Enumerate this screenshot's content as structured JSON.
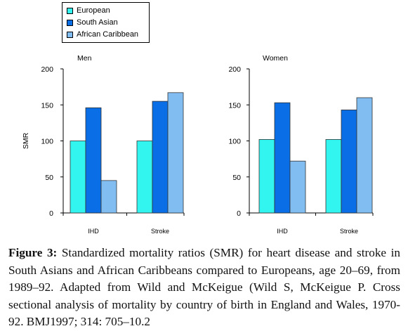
{
  "legend": {
    "items": [
      {
        "label": "European",
        "color": "#33f5f0"
      },
      {
        "label": "South Asian",
        "color": "#0a6ee6"
      },
      {
        "label": "African Caribbean",
        "color": "#82bdf2"
      }
    ]
  },
  "chart_data": [
    {
      "type": "bar",
      "title": "Men",
      "ylabel": "SMR",
      "xlabel": "",
      "ylim": [
        0,
        200
      ],
      "yticks": [
        "0",
        "50",
        "100",
        "150",
        "200"
      ],
      "categories": [
        "IHD",
        "Stroke"
      ],
      "series": [
        {
          "name": "European",
          "values": [
            100,
            100
          ]
        },
        {
          "name": "South Asian",
          "values": [
            146,
            155
          ]
        },
        {
          "name": "African Caribbean",
          "values": [
            45,
            167
          ]
        }
      ]
    },
    {
      "type": "bar",
      "title": "Women",
      "ylabel": "",
      "xlabel": "",
      "ylim": [
        0,
        200
      ],
      "yticks": [
        "0",
        "50",
        "100",
        "150",
        "200"
      ],
      "categories": [
        "IHD",
        "Stroke"
      ],
      "series": [
        {
          "name": "European",
          "values": [
            102,
            102
          ]
        },
        {
          "name": "South Asian",
          "values": [
            153,
            143
          ]
        },
        {
          "name": "African Caribbean",
          "values": [
            72,
            160
          ]
        }
      ]
    }
  ],
  "caption": {
    "label": "Figure 3:",
    "text": " Standardized mortality ratios (SMR) for heart disease and stroke in South Asians and African Caribbeans compared to Europeans, age 20–69, from 1989–92. Adapted from Wild and McKeigue (Wild S, McKeigue P. Cross sectional analysis of mortality by country of birth in England and Wales, 1970-92. BMJ1997; 314: 705–10.2"
  }
}
